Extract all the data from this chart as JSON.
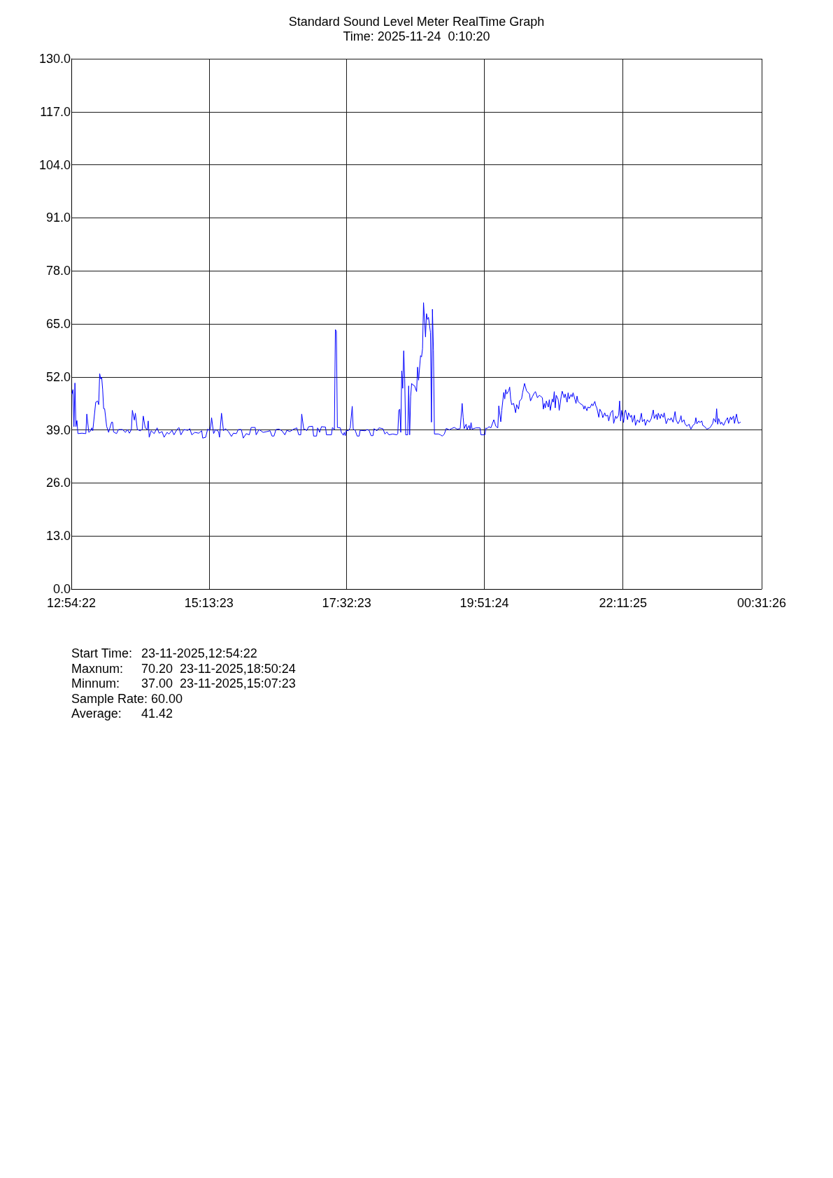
{
  "chart_data": {
    "type": "line",
    "title": "Standard Sound Level Meter RealTime Graph",
    "subtitle": "Time: 2025-11-24  0:10:20",
    "annotations": [
      "Start Time:\t23-11-2025,12:54:22",
      "Maxnum:\t70.20  23-11-2025,18:50:24",
      "Minnum:\t37.00  23-11-2025,15:07:23",
      "Sample Rate: 60.00",
      "Average:\t41.42"
    ],
    "color": "#0000ff",
    "marker": "none",
    "grid": true,
    "xlim": [
      "2025-11-23T12:54:22",
      "2025-11-24T00:31:26"
    ],
    "xticks": [
      {
        "value": "2025-11-23T12:54:22",
        "label": "12:54:22"
      },
      {
        "value": "2025-11-23T15:13:23",
        "label": "15:13:23"
      },
      {
        "value": "2025-11-23T17:32:23",
        "label": "17:32:23"
      },
      {
        "value": "2025-11-23T19:51:24",
        "label": "19:51:24"
      },
      {
        "value": "2025-11-23T22:11:25",
        "label": "22:11:25"
      },
      {
        "value": "2025-11-24T00:31:26",
        "label": "00:31:26"
      }
    ],
    "ylim": [
      0,
      130
    ],
    "yticks": [
      {
        "value": 0,
        "label": "0.0"
      },
      {
        "value": 13,
        "label": "13.0"
      },
      {
        "value": 26,
        "label": "26.0"
      },
      {
        "value": 39,
        "label": "39.0"
      },
      {
        "value": 52,
        "label": "52.0"
      },
      {
        "value": 65,
        "label": "65.0"
      },
      {
        "value": 78,
        "label": "78.0"
      },
      {
        "value": 91,
        "label": "91.0"
      },
      {
        "value": 104,
        "label": "104.0"
      },
      {
        "value": 117,
        "label": "117.0"
      },
      {
        "value": 130,
        "label": "130.0"
      }
    ],
    "x": [
      "2025-11-23T12:55",
      "2025-11-23T12:56",
      "2025-11-23T12:57",
      "2025-11-23T12:58",
      "2025-11-23T12:59",
      "2025-11-23T13:00",
      "2025-11-23T13:01",
      "2025-11-23T13:05",
      "2025-11-23T13:09",
      "2025-11-23T13:10",
      "2025-11-23T13:12",
      "2025-11-23T13:14",
      "2025-11-23T13:15",
      "2025-11-23T13:16",
      "2025-11-23T13:19",
      "2025-11-23T13:21",
      "2025-11-23T13:22",
      "2025-11-23T13:23",
      "2025-11-23T13:24",
      "2025-11-23T13:25",
      "2025-11-23T13:26",
      "2025-11-23T13:27",
      "2025-11-23T13:28",
      "2025-11-23T13:30",
      "2025-11-23T13:32",
      "2025-11-23T13:35",
      "2025-11-23T13:36",
      "2025-11-23T13:37",
      "2025-11-23T13:40",
      "2025-11-23T13:42",
      "2025-11-23T13:46",
      "2025-11-23T13:49",
      "2025-11-23T13:51",
      "2025-11-23T13:53",
      "2025-11-23T13:55",
      "2025-11-23T13:56",
      "2025-11-23T13:58",
      "2025-11-23T13:59",
      "2025-11-23T14:01",
      "2025-11-23T14:04",
      "2025-11-23T14:06",
      "2025-11-23T14:07",
      "2025-11-23T14:09",
      "2025-11-23T14:11",
      "2025-11-23T14:12",
      "2025-11-23T14:13",
      "2025-11-23T14:15",
      "2025-11-23T14:18",
      "2025-11-23T14:21",
      "2025-11-23T14:23",
      "2025-11-23T14:26",
      "2025-11-23T14:28",
      "2025-11-23T14:31",
      "2025-11-23T14:33",
      "2025-11-23T14:36",
      "2025-11-23T14:38",
      "2025-11-23T14:41",
      "2025-11-23T14:43",
      "2025-11-23T14:45",
      "2025-11-23T14:48",
      "2025-11-23T14:52",
      "2025-11-23T14:54",
      "2025-11-23T14:56",
      "2025-11-23T14:59",
      "2025-11-23T15:03",
      "2025-11-23T15:06",
      "2025-11-23T15:07",
      "2025-11-23T15:10",
      "2025-11-23T15:12",
      "2025-11-23T15:14",
      "2025-11-23T15:15",
      "2025-11-23T15:16",
      "2025-11-23T15:18",
      "2025-11-23T15:20",
      "2025-11-23T15:23",
      "2025-11-23T15:24",
      "2025-11-23T15:26",
      "2025-11-23T15:28",
      "2025-11-23T15:30",
      "2025-11-23T15:33",
      "2025-11-23T15:36",
      "2025-11-23T15:38",
      "2025-11-23T15:41",
      "2025-11-23T15:43",
      "2025-11-23T15:46",
      "2025-11-23T15:48",
      "2025-11-23T15:51",
      "2025-11-23T15:54",
      "2025-11-23T15:56",
      "2025-11-23T16:00",
      "2025-11-23T16:01",
      "2025-11-23T16:04",
      "2025-11-23T16:08",
      "2025-11-23T16:12",
      "2025-11-23T16:15",
      "2025-11-23T16:17",
      "2025-11-23T16:19",
      "2025-11-23T16:21",
      "2025-11-23T16:24",
      "2025-11-23T16:27",
      "2025-11-23T16:30",
      "2025-11-23T16:32",
      "2025-11-23T16:35",
      "2025-11-23T16:39",
      "2025-11-23T16:42",
      "2025-11-23T16:44",
      "2025-11-23T16:46",
      "2025-11-23T16:47",
      "2025-11-23T16:49",
      "2025-11-23T16:51",
      "2025-11-23T16:52",
      "2025-11-23T16:54",
      "2025-11-23T16:58",
      "2025-11-23T16:59",
      "2025-11-23T17:02",
      "2025-11-23T17:03",
      "2025-11-23T17:04",
      "2025-11-23T17:05",
      "2025-11-23T17:07",
      "2025-11-23T17:11",
      "2025-11-23T17:12",
      "2025-11-23T17:17",
      "2025-11-23T17:18",
      "2025-11-23T17:20",
      "2025-11-23T17:21",
      "2025-11-23T17:22",
      "2025-11-23T17:23",
      "2025-11-23T17:26",
      "2025-11-23T17:27",
      "2025-11-23T17:29",
      "2025-11-23T17:30",
      "2025-11-23T17:31",
      "2025-11-23T17:32",
      "2025-11-23T17:34",
      "2025-11-23T17:36",
      "2025-11-23T17:38",
      "2025-11-23T17:39",
      "2025-11-23T17:41",
      "2025-11-23T17:43",
      "2025-11-23T17:45",
      "2025-11-23T17:46",
      "2025-11-23T17:51",
      "2025-11-23T17:53",
      "2025-11-23T17:55",
      "2025-11-23T17:57",
      "2025-11-23T17:59",
      "2025-11-23T18:00",
      "2025-11-23T18:03",
      "2025-11-23T18:05",
      "2025-11-23T18:09",
      "2025-11-23T18:11",
      "2025-11-23T18:13",
      "2025-11-23T18:15",
      "2025-11-23T18:19",
      "2025-11-23T18:23",
      "2025-11-23T18:24",
      "2025-11-23T18:25",
      "2025-11-23T18:26",
      "2025-11-23T18:27",
      "2025-11-23T18:28",
      "2025-11-23T18:29",
      "2025-11-23T18:30",
      "2025-11-23T18:31",
      "2025-11-23T18:32",
      "2025-11-23T18:34",
      "2025-11-23T18:35",
      "2025-11-23T18:36",
      "2025-11-23T18:37",
      "2025-11-23T18:38",
      "2025-11-23T18:39",
      "2025-11-23T18:41",
      "2025-11-23T18:43",
      "2025-11-23T18:44",
      "2025-11-23T18:45",
      "2025-11-23T18:47",
      "2025-11-23T18:48",
      "2025-11-23T18:49",
      "2025-11-23T18:50",
      "2025-11-23T18:52",
      "2025-11-23T18:53",
      "2025-11-23T18:54",
      "2025-11-23T18:55",
      "2025-11-23T18:57",
      "2025-11-23T18:58",
      "2025-11-23T18:59",
      "2025-11-23T19:00",
      "2025-11-23T19:01",
      "2025-11-23T19:05",
      "2025-11-23T19:07",
      "2025-11-23T19:09",
      "2025-11-23T19:11",
      "2025-11-23T19:13",
      "2025-11-23T19:16",
      "2025-11-23T19:18",
      "2025-11-23T19:21",
      "2025-11-23T19:24",
      "2025-11-23T19:27",
      "2025-11-23T19:29",
      "2025-11-23T19:30",
      "2025-11-23T19:31",
      "2025-11-23T19:33",
      "2025-11-23T19:34",
      "2025-11-23T19:36",
      "2025-11-23T19:37",
      "2025-11-23T19:38",
      "2025-11-23T19:39",
      "2025-11-23T19:43",
      "2025-11-23T19:47",
      "2025-11-23T19:48",
      "2025-11-23T19:52",
      "2025-11-23T19:53",
      "2025-11-23T19:54",
      "2025-11-23T19:56",
      "2025-11-23T19:58",
      "2025-11-23T20:01",
      "2025-11-23T20:03",
      "2025-11-23T20:05",
      "2025-11-23T20:06",
      "2025-11-23T20:08",
      "2025-11-23T20:09",
      "2025-11-23T20:11",
      "2025-11-23T20:12",
      "2025-11-23T20:13",
      "2025-11-23T20:14",
      "2025-11-23T20:16",
      "2025-11-23T20:17",
      "2025-11-23T20:18",
      "2025-11-23T20:19",
      "2025-11-23T20:21",
      "2025-11-23T20:23",
      "2025-11-23T20:24",
      "2025-11-23T20:26",
      "2025-11-23T20:27",
      "2025-11-23T20:29",
      "2025-11-23T20:30",
      "2025-11-23T20:32",
      "2025-11-23T20:34",
      "2025-11-23T20:37",
      "2025-11-23T20:38",
      "2025-11-23T20:40",
      "2025-11-23T20:42",
      "2025-11-23T20:43",
      "2025-11-23T20:45",
      "2025-11-23T20:47",
      "2025-11-23T20:48",
      "2025-11-23T20:50",
      "2025-11-23T20:51",
      "2025-11-23T20:52",
      "2025-11-23T20:53",
      "2025-11-23T20:54",
      "2025-11-23T20:56",
      "2025-11-23T20:57",
      "2025-11-23T20:58",
      "2025-11-23T21:00",
      "2025-11-23T21:01",
      "2025-11-23T21:02",
      "2025-11-23T21:03",
      "2025-11-23T21:04",
      "2025-11-23T21:06",
      "2025-11-23T21:07",
      "2025-11-23T21:09",
      "2025-11-23T21:10",
      "2025-11-23T21:12",
      "2025-11-23T21:13",
      "2025-11-23T21:15",
      "2025-11-23T21:16",
      "2025-11-23T21:17",
      "2025-11-23T21:19",
      "2025-11-23T21:20",
      "2025-11-23T21:21",
      "2025-11-23T21:23",
      "2025-11-23T21:24",
      "2025-11-23T21:25",
      "2025-11-23T21:26",
      "2025-11-23T21:28",
      "2025-11-23T21:31",
      "2025-11-23T21:32",
      "2025-11-23T21:33",
      "2025-11-23T21:35",
      "2025-11-23T21:36",
      "2025-11-23T21:38",
      "2025-11-23T21:40",
      "2025-11-23T21:41",
      "2025-11-23T21:43",
      "2025-11-23T21:44",
      "2025-11-23T21:45",
      "2025-11-23T21:47",
      "2025-11-23T21:48",
      "2025-11-23T21:50",
      "2025-11-23T21:51",
      "2025-11-23T21:53",
      "2025-11-23T21:54",
      "2025-11-23T21:56",
      "2025-11-23T21:57",
      "2025-11-23T21:59",
      "2025-11-23T22:01",
      "2025-11-23T22:02",
      "2025-11-23T22:04",
      "2025-11-23T22:05",
      "2025-11-23T22:07",
      "2025-11-23T22:08",
      "2025-11-23T22:09",
      "2025-11-23T22:10",
      "2025-11-23T22:12",
      "2025-11-23T22:13",
      "2025-11-23T22:14",
      "2025-11-23T22:16",
      "2025-11-23T22:17",
      "2025-11-23T22:19",
      "2025-11-23T22:20",
      "2025-11-23T22:21",
      "2025-11-23T22:23",
      "2025-11-23T22:24",
      "2025-11-23T22:26",
      "2025-11-23T22:28",
      "2025-11-23T22:30",
      "2025-11-23T22:31",
      "2025-11-23T22:33",
      "2025-11-23T22:34",
      "2025-11-23T22:36",
      "2025-11-23T22:38",
      "2025-11-23T22:40",
      "2025-11-23T22:42",
      "2025-11-23T22:43",
      "2025-11-23T22:45",
      "2025-11-23T22:46",
      "2025-11-23T22:47",
      "2025-11-23T22:49",
      "2025-11-23T22:50",
      "2025-11-23T22:52",
      "2025-11-23T22:53",
      "2025-11-23T22:55",
      "2025-11-23T22:57",
      "2025-11-23T22:59",
      "2025-11-23T23:00",
      "2025-11-23T23:02",
      "2025-11-23T23:04",
      "2025-11-23T23:05",
      "2025-11-23T23:07",
      "2025-11-23T23:09",
      "2025-11-23T23:10",
      "2025-11-23T23:11",
      "2025-11-23T23:13",
      "2025-11-23T23:14",
      "2025-11-23T23:16",
      "2025-11-23T23:18",
      "2025-11-23T23:20",
      "2025-11-23T23:22",
      "2025-11-23T23:24",
      "2025-11-23T23:25",
      "2025-11-23T23:26",
      "2025-11-23T23:28",
      "2025-11-23T23:29",
      "2025-11-23T23:31",
      "2025-11-23T23:32",
      "2025-11-23T23:34",
      "2025-11-23T23:36",
      "2025-11-23T23:39",
      "2025-11-23T23:40",
      "2025-11-23T23:42",
      "2025-11-23T23:43",
      "2025-11-23T23:45",
      "2025-11-23T23:46",
      "2025-11-23T23:47",
      "2025-11-23T23:48",
      "2025-11-23T23:50",
      "2025-11-23T23:51",
      "2025-11-23T23:53",
      "2025-11-23T23:55",
      "2025-11-23T23:57",
      "2025-11-23T23:58",
      "2025-11-24T00:00",
      "2025-11-24T00:01",
      "2025-11-24T00:03",
      "2025-11-24T00:04",
      "2025-11-24T00:06",
      "2025-11-24T00:07",
      "2025-11-24T00:08",
      "2025-11-24T00:10"
    ],
    "values": [
      47.8,
      48.9,
      39.8,
      50.5,
      39.8,
      41.3,
      38.1,
      38.2,
      38.1,
      42.9,
      38.4,
      38.8,
      39.5,
      38.8,
      45.8,
      46.1,
      45.2,
      52.8,
      51.5,
      51.9,
      48.9,
      44.2,
      44.2,
      39.9,
      38.4,
      40.9,
      40.9,
      38.5,
      38.1,
      39.1,
      39.1,
      38.4,
      39.1,
      38.2,
      39.1,
      43.8,
      41.4,
      43.1,
      39.1,
      38.8,
      39.2,
      42.4,
      39.5,
      39.1,
      41.2,
      37.2,
      38.8,
      38.1,
      39.5,
      38.2,
      38.6,
      37.2,
      38.4,
      38.0,
      38.9,
      37.8,
      39.1,
      39.6,
      37.8,
      39.1,
      38.9,
      39.3,
      37.8,
      38.4,
      38.2,
      38.8,
      37.0,
      37.2,
      39.2,
      38.8,
      39.8,
      42.0,
      38.1,
      39.1,
      38.6,
      37.2,
      43.1,
      38.8,
      39.3,
      38.6,
      37.4,
      38.2,
      38.1,
      39.1,
      39.1,
      37.0,
      38.1,
      37.8,
      39.6,
      39.6,
      37.8,
      39.1,
      38.4,
      38.6,
      38.8,
      37.5,
      37.5,
      39.1,
      39.2,
      38.8,
      37.8,
      38.9,
      38.6,
      39.2,
      39.5,
      37.8,
      37.8,
      42.9,
      39.2,
      39.1,
      38.8,
      39.8,
      39.9,
      37.5,
      37.5,
      39.5,
      39.1,
      38.4,
      39.8,
      39.7,
      37.8,
      37.8,
      39.6,
      39.1,
      63.6,
      63.2,
      39.6,
      39.5,
      38.4,
      37.7,
      38.4,
      37.6,
      38.9,
      38.8,
      39.5,
      44.8,
      39.2,
      38.9,
      37.5,
      37.5,
      38.9,
      38.8,
      39.1,
      38.9,
      37.6,
      37.6,
      39.3,
      38.8,
      39.5,
      39.3,
      38.0,
      38.5,
      37.8,
      38.0,
      37.8,
      38.1,
      43.8,
      44.1,
      38.4,
      53.5,
      49.2,
      58.4,
      51.5,
      37.8,
      37.8,
      49.8,
      37.8,
      47.2,
      50.4,
      50.1,
      49.8,
      48.4,
      54.4,
      51.2,
      57.2,
      56.9,
      58.9,
      70.2,
      61.8,
      67.5,
      66.1,
      66.6,
      62.9,
      40.9,
      68.6,
      58.6,
      38.0,
      38.0,
      37.8,
      37.5,
      38.0,
      39.4,
      39.0,
      39.3,
      39.6,
      39.2,
      39.3,
      45.5,
      42.1,
      39.3,
      40.4,
      39.1,
      40.1,
      39.1,
      40.8,
      39.2,
      39.5,
      39.5,
      37.8,
      37.8,
      39.5,
      39.3,
      39.8,
      39.5,
      41.5,
      39.9,
      39.5,
      44.9,
      41.0,
      43.8,
      48.2,
      46.6,
      48.9,
      47.8,
      48.6,
      49.5,
      46.6,
      45.2,
      45.5,
      43.2,
      45.2,
      44.1,
      46.1,
      46.6,
      48.1,
      50.4,
      48.6,
      47.8,
      46.1,
      47.2,
      48.1,
      48.4,
      46.9,
      47.5,
      47.3,
      46.9,
      44.1,
      45.5,
      44.4,
      46.1,
      44.6,
      46.4,
      43.8,
      46.6,
      45.8,
      48.4,
      44.4,
      47.5,
      46.4,
      43.8,
      47.2,
      48.5,
      46.9,
      47.8,
      45.8,
      48.1,
      46.6,
      47.7,
      47.1,
      48.1,
      46.4,
      45.5,
      47.3,
      46.0,
      45.5,
      45.0,
      44.1,
      44.9,
      43.7,
      44.6,
      44.4,
      45.4,
      44.9,
      46.0,
      44.9,
      44.4,
      42.1,
      44.1,
      43.2,
      42.0,
      43.2,
      42.4,
      42.6,
      41.2,
      43.2,
      43.8,
      40.6,
      42.4,
      41.8,
      42.6,
      46.1,
      41.2,
      43.8,
      40.8,
      43.2,
      43.9,
      41.5,
      43.2,
      42.1,
      42.6,
      40.9,
      42.6,
      40.1,
      41.5,
      40.8,
      43.1,
      41.0,
      41.6,
      40.1,
      41.5,
      40.9,
      41.8,
      43.9,
      41.8,
      42.8,
      41.5,
      43.1,
      41.8,
      42.9,
      42.1,
      43.2,
      40.5,
      41.8,
      41.4,
      42.0,
      40.9,
      43.5,
      41.5,
      40.5,
      41.5,
      42.5,
      40.9,
      41.5,
      40.5,
      39.9,
      40.4,
      39.2,
      40.1,
      40.5,
      42.0,
      40.5,
      41.2,
      40.8,
      41.2,
      40.1,
      39.8,
      39.2,
      39.5,
      39.8,
      40.6,
      41.8,
      40.9,
      44.2,
      40.4,
      41.8,
      40.4,
      40.9,
      40.1,
      41.2,
      42.0,
      40.6,
      42.2,
      41.5,
      42.4,
      40.6,
      42.9,
      41.5,
      40.6,
      40.9
    ]
  }
}
